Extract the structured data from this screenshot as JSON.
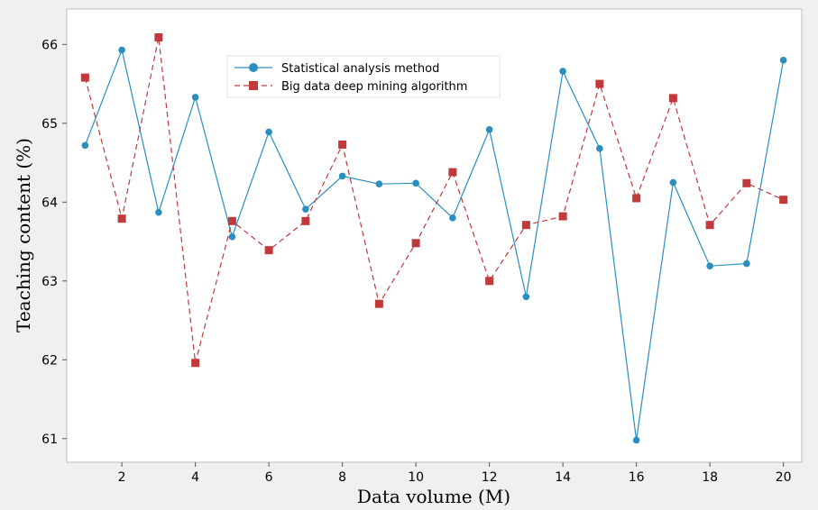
{
  "chart_data": {
    "type": "line",
    "title": "",
    "xlabel": "Data volume (M)",
    "ylabel": "Teaching content (%)",
    "x": [
      1,
      2,
      3,
      4,
      5,
      6,
      7,
      8,
      9,
      10,
      11,
      12,
      13,
      14,
      15,
      16,
      17,
      18,
      19,
      20
    ],
    "xlim": [
      0.5,
      20.5
    ],
    "ylim": [
      60.7,
      66.45
    ],
    "xticks": [
      2,
      4,
      6,
      8,
      10,
      12,
      14,
      16,
      18,
      20
    ],
    "yticks": [
      61,
      62,
      63,
      64,
      65,
      66
    ],
    "grid": false,
    "legend_position": "top-center",
    "series": [
      {
        "name": "Statistical analysis method",
        "color": "#2a8fc0",
        "line_style": "solid",
        "marker": "circle",
        "values": [
          64.72,
          65.93,
          63.87,
          65.33,
          63.56,
          64.89,
          63.91,
          64.33,
          64.23,
          64.24,
          63.8,
          64.92,
          62.8,
          65.66,
          64.68,
          60.98,
          64.25,
          63.19,
          63.22,
          65.8
        ]
      },
      {
        "name": "Big data deep mining algorithm",
        "color": "#c0393b",
        "line_style": "dashed",
        "marker": "square",
        "values": [
          65.58,
          63.79,
          66.09,
          61.96,
          63.76,
          63.39,
          63.76,
          64.73,
          62.71,
          63.48,
          64.38,
          63.0,
          63.71,
          63.82,
          65.5,
          64.05,
          65.32,
          63.71,
          64.24,
          64.03
        ]
      }
    ]
  }
}
